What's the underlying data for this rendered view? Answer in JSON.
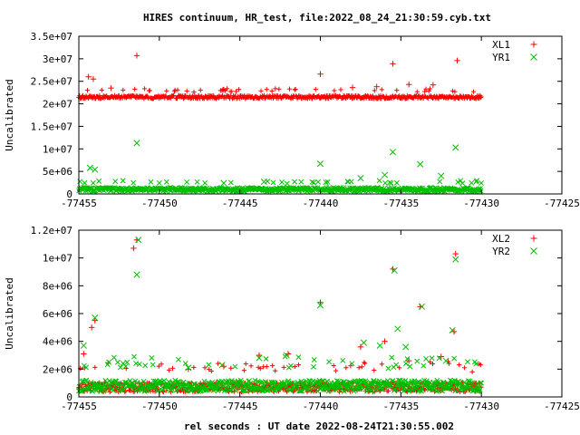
{
  "chart_data": [
    {
      "type": "scatter",
      "title": "HIRES continuum, HR_test, file:2022_08_24_21:30:59.cyb.txt",
      "xlabel": "",
      "ylabel": "Uncalibrated",
      "xlim": [
        -77455,
        -77425
      ],
      "ylim": [
        0,
        35000000
      ],
      "x_ticks": [
        -77455,
        -77450,
        -77445,
        -77440,
        -77435,
        -77430,
        -77425
      ],
      "x_tick_labels": [
        "-77455",
        "-77450",
        "-77445",
        "-77440",
        "-77435",
        "-77430",
        "-77425"
      ],
      "y_ticks": [
        0,
        5000000,
        10000000,
        15000000,
        20000000,
        25000000,
        30000000,
        35000000
      ],
      "y_tick_labels": [
        "0",
        "5e+06",
        "1e+07",
        "1.5e+07",
        "2e+07",
        "2.5e+07",
        "3e+07",
        "3.5e+07"
      ],
      "legend": "top-right",
      "grid": false,
      "series": [
        {
          "name": "XL1",
          "marker": "plus",
          "color": "#ff0000",
          "band": {
            "x_start": -77455,
            "x_end": -77430,
            "y_mean": 21500000,
            "y_spread": 700000
          },
          "points": [
            [
              -77454.4,
              26000000
            ],
            [
              -77454.1,
              25500000
            ],
            [
              -77451.4,
              30700000
            ],
            [
              -77440.0,
              26600000
            ],
            [
              -77435.5,
              28900000
            ],
            [
              -77431.5,
              29600000
            ],
            [
              -77434.5,
              24300000
            ],
            [
              -77433.0,
              24200000
            ],
            [
              -77453.0,
              23500000
            ],
            [
              -77446.0,
              23100000
            ],
            [
              -77438.0,
              23600000
            ],
            [
              -77436.5,
              23800000
            ]
          ]
        },
        {
          "name": "YR1",
          "marker": "cross",
          "color": "#00c000",
          "band": {
            "x_start": -77455,
            "x_end": -77430,
            "y_mean": 1000000,
            "y_spread": 800000
          },
          "points": [
            [
              -77454.3,
              5800000
            ],
            [
              -77454.0,
              5400000
            ],
            [
              -77451.4,
              11300000
            ],
            [
              -77440.0,
              6700000
            ],
            [
              -77435.5,
              9300000
            ],
            [
              -77431.6,
              10300000
            ],
            [
              -77433.8,
              6600000
            ],
            [
              -77437.5,
              3500000
            ],
            [
              -77432.5,
              4000000
            ],
            [
              -77446.0,
              2400000
            ],
            [
              -77443.5,
              2700000
            ],
            [
              -77436.0,
              4200000
            ]
          ]
        }
      ]
    },
    {
      "type": "scatter",
      "title": "",
      "xlabel": "rel seconds : UT date 2022-08-24T21:30:55.002",
      "ylabel": "Uncalibrated",
      "xlim": [
        -77455,
        -77425
      ],
      "ylim": [
        0,
        12000000
      ],
      "x_ticks": [
        -77455,
        -77450,
        -77445,
        -77440,
        -77435,
        -77430,
        -77425
      ],
      "x_tick_labels": [
        "-77455",
        "-77450",
        "-77445",
        "-77440",
        "-77435",
        "-77430",
        "-77425"
      ],
      "y_ticks": [
        0,
        2000000,
        4000000,
        6000000,
        8000000,
        10000000,
        12000000
      ],
      "y_tick_labels": [
        "0",
        "2e+06",
        "4e+06",
        "6e+06",
        "8e+06",
        "1e+07",
        "1.2e+07"
      ],
      "legend": "top-right",
      "grid": false,
      "series": [
        {
          "name": "XL2",
          "marker": "plus",
          "color": "#ff0000",
          "band": {
            "x_start": -77455,
            "x_end": -77430,
            "y_mean": 700000,
            "y_spread": 700000
          },
          "points": [
            [
              -77451.6,
              10700000
            ],
            [
              -77451.4,
              11300000
            ],
            [
              -77454.2,
              5000000
            ],
            [
              -77454.0,
              5500000
            ],
            [
              -77440.0,
              6800000
            ],
            [
              -77435.5,
              9200000
            ],
            [
              -77431.6,
              10300000
            ],
            [
              -77433.8,
              6500000
            ],
            [
              -77454.7,
              3100000
            ],
            [
              -77443.8,
              3000000
            ],
            [
              -77437.5,
              3600000
            ],
            [
              -77436.0,
              4000000
            ],
            [
              -77432.5,
              2900000
            ],
            [
              -77448.2,
              2000000
            ],
            [
              -77446.0,
              2200000
            ],
            [
              -77442.0,
              3100000
            ],
            [
              -77431.7,
              4700000
            ],
            [
              -77434.5,
              2600000
            ]
          ]
        },
        {
          "name": "YR2",
          "marker": "cross",
          "color": "#00c000",
          "band": {
            "x_start": -77455,
            "x_end": -77430,
            "y_mean": 800000,
            "y_spread": 800000
          },
          "points": [
            [
              -77451.3,
              11300000
            ],
            [
              -77451.4,
              8800000
            ],
            [
              -77454.0,
              5700000
            ],
            [
              -77454.7,
              3700000
            ],
            [
              -77440.0,
              6600000
            ],
            [
              -77435.4,
              9100000
            ],
            [
              -77431.6,
              9900000
            ],
            [
              -77433.7,
              6500000
            ],
            [
              -77435.2,
              4900000
            ],
            [
              -77436.3,
              3700000
            ],
            [
              -77437.3,
              3900000
            ],
            [
              -77434.7,
              3600000
            ],
            [
              -77431.8,
              4800000
            ],
            [
              -77443.8,
              2800000
            ],
            [
              -77448.2,
              2100000
            ],
            [
              -77446.1,
              2300000
            ],
            [
              -77442.1,
              3000000
            ],
            [
              -77432.2,
              2600000
            ]
          ]
        }
      ]
    }
  ]
}
